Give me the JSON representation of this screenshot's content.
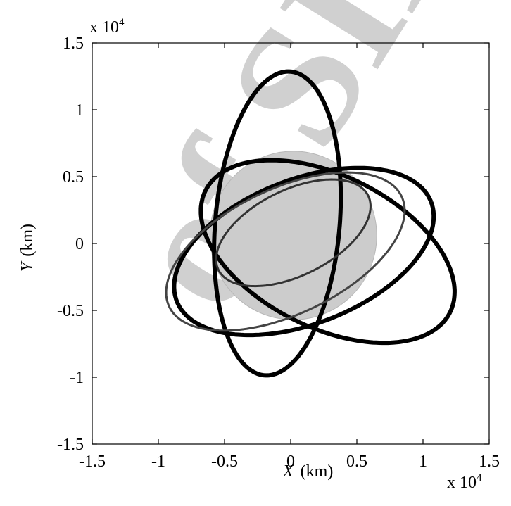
{
  "chart_data": {
    "type": "line",
    "title": "",
    "xlabel": {
      "var": "X",
      "unit": "(km)"
    },
    "ylabel": {
      "var": "Y",
      "unit": "(km)"
    },
    "x_multiplier": {
      "base": "x 10",
      "exp": "4"
    },
    "y_multiplier": {
      "base": "x 10",
      "exp": "4"
    },
    "xlim": [
      -1.5,
      1.5
    ],
    "ylim": [
      -1.5,
      1.5
    ],
    "xticks": [
      -1.5,
      -1,
      -0.5,
      0,
      0.5,
      1,
      1.5
    ],
    "yticks": [
      -1.5,
      -1,
      -0.5,
      0,
      0.5,
      1,
      1.5
    ],
    "xtick_labels": [
      "-1.5",
      "-1",
      "-0.5",
      "0",
      "0.5",
      "1",
      "1.5"
    ],
    "ytick_labels": [
      "-1.5",
      "-1",
      "-0.5",
      "0",
      "0.5",
      "1",
      "1.5"
    ],
    "grid": false,
    "legend": "none",
    "earth_disk": {
      "center": [
        0.02,
        0.06
      ],
      "radius": 0.63,
      "color": "#cccccc"
    },
    "series": [
      {
        "color": "#000000",
        "style": "ellipse",
        "center": [
          -0.1,
          0.15
        ],
        "semi_axes": [
          0.47,
          1.14
        ],
        "rotation_deg": -5
      },
      {
        "color": "#000000",
        "style": "ellipse",
        "center": [
          0.28,
          -0.06
        ],
        "semi_axes": [
          1.03,
          0.57
        ],
        "rotation_deg": -26
      },
      {
        "color": "#000000",
        "style": "ellipse",
        "center": [
          0.1,
          -0.06
        ],
        "semi_axes": [
          1.03,
          0.54
        ],
        "rotation_deg": 21
      },
      {
        "color": "#444444",
        "style": "ellipse",
        "center": [
          -0.04,
          -0.06
        ],
        "semi_axes": [
          0.97,
          0.47
        ],
        "rotation_deg": 25
      },
      {
        "color": "#333333",
        "style": "ellipse",
        "center": [
          0.02,
          0.08
        ],
        "semi_axes": [
          0.63,
          0.32
        ],
        "rotation_deg": 26
      }
    ]
  },
  "watermark": {
    "text": "of SID",
    "color": "#d0d0d0"
  }
}
